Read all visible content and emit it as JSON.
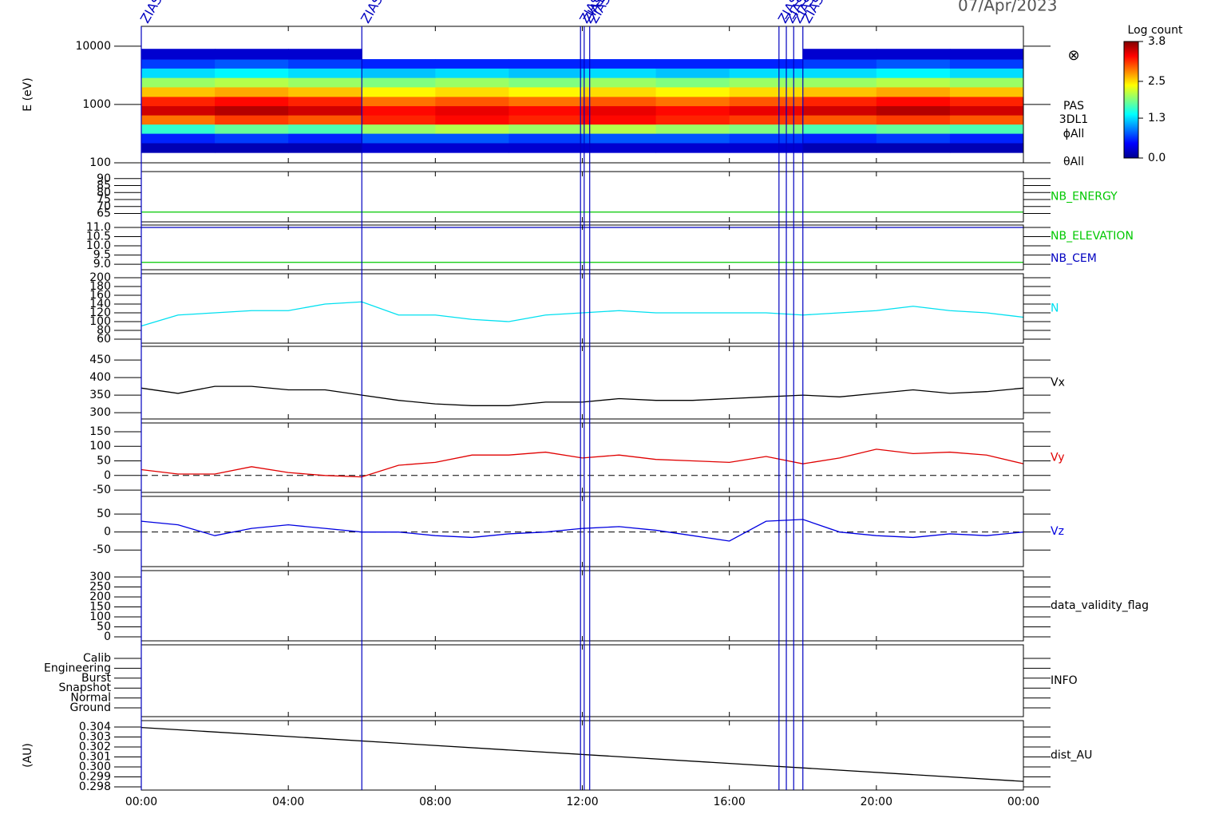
{
  "title": "07/Apr/2023",
  "event_markers": {
    "label": "ZIAS",
    "color": "#0000c0",
    "x": [
      0,
      6,
      11.95,
      12.05,
      12.2,
      17.35,
      17.55,
      17.75,
      18.0
    ]
  },
  "chart_data": [
    {
      "type": "heatmap",
      "ylabel": "E (eV)",
      "log_y": true,
      "xlim": [
        0,
        24
      ],
      "ylim": [
        100,
        21900
      ],
      "yticks": [
        100,
        1000,
        10000
      ],
      "right_labels": [
        "PAS",
        "3DL1",
        "ϕAll",
        "θAll"
      ],
      "symbol": "⊗",
      "x_edges": [
        0,
        2,
        4,
        6,
        8,
        10,
        12,
        14,
        16,
        18,
        20,
        22,
        24
      ],
      "y_edges": [
        150,
        220,
        320,
        460,
        660,
        950,
        1370,
        2000,
        2900,
        4200,
        6000,
        9000
      ],
      "z": [
        [
          0.2,
          0.2,
          0.2,
          0.3,
          0.3,
          0.3,
          0.3,
          0.3,
          0.3,
          0.2,
          0.2,
          0.2
        ],
        [
          0.6,
          0.7,
          0.6,
          0.8,
          0.8,
          0.7,
          0.8,
          0.8,
          0.7,
          0.6,
          0.7,
          0.6
        ],
        [
          1.6,
          1.8,
          1.7,
          2.0,
          2.1,
          2.0,
          2.1,
          2.0,
          1.9,
          1.7,
          1.8,
          1.7
        ],
        [
          2.9,
          3.1,
          3.0,
          3.2,
          3.3,
          3.2,
          3.3,
          3.2,
          3.1,
          3.0,
          3.1,
          3.0
        ],
        [
          3.5,
          3.6,
          3.5,
          3.3,
          3.4,
          3.3,
          3.4,
          3.3,
          3.4,
          3.5,
          3.6,
          3.5
        ],
        [
          3.2,
          3.3,
          3.2,
          2.9,
          3.0,
          2.9,
          3.0,
          2.9,
          3.0,
          3.2,
          3.3,
          3.2
        ],
        [
          2.6,
          2.7,
          2.6,
          2.4,
          2.5,
          2.4,
          2.5,
          2.4,
          2.5,
          2.6,
          2.7,
          2.6
        ],
        [
          2.0,
          2.1,
          2.0,
          1.9,
          2.0,
          1.9,
          2.0,
          1.9,
          2.0,
          2.0,
          2.1,
          2.0
        ],
        [
          1.3,
          1.4,
          1.3,
          1.2,
          1.3,
          1.2,
          1.3,
          1.2,
          1.3,
          1.3,
          1.4,
          1.3
        ],
        [
          0.7,
          0.8,
          0.7,
          0.6,
          0.6,
          0.6,
          0.6,
          0.6,
          0.6,
          0.7,
          0.8,
          0.7
        ],
        [
          0.3,
          0.3,
          0.3,
          null,
          null,
          null,
          null,
          null,
          null,
          0.3,
          0.3,
          0.3
        ]
      ],
      "colorbar": {
        "title": "Log count",
        "zlim": [
          0,
          3.8
        ],
        "ticks": [
          {
            "value": 0,
            "label": "0.0"
          },
          1.3,
          2.5,
          3.8
        ]
      }
    },
    {
      "type": "line",
      "xlim": [
        0,
        24
      ],
      "ylim": [
        59,
        95
      ],
      "yticks": [
        65,
        70,
        75,
        80,
        85,
        90
      ],
      "series": [
        {
          "name": "NB_ENERGY",
          "color": "#00c800",
          "x": [
            0,
            24
          ],
          "values": [
            66,
            66
          ]
        }
      ]
    },
    {
      "type": "line",
      "xlim": [
        0,
        24
      ],
      "ylim": [
        8.7,
        11.13
      ],
      "yticks": [
        {
          "value": 9,
          "label": "9.0"
        },
        9.5,
        {
          "value": 10,
          "label": "10.0"
        },
        10.5,
        {
          "value": 11,
          "label": "11.0"
        }
      ],
      "series": [
        {
          "name": "NB_ELEVATION",
          "color": "#00c800",
          "x": [
            0,
            24
          ],
          "values": [
            9.1,
            9.1
          ]
        },
        {
          "name": "NB_CEM",
          "color": "#0000c0",
          "x": [
            0,
            24
          ],
          "values": [
            11.0,
            11.0
          ]
        }
      ]
    },
    {
      "type": "line",
      "xlim": [
        0,
        24
      ],
      "ylim": [
        51,
        209
      ],
      "yticks": [
        60,
        80,
        100,
        120,
        140,
        160,
        180,
        200
      ],
      "series": [
        {
          "name": "N",
          "color": "#00e0f0",
          "x": [
            0,
            1,
            2,
            3,
            4,
            5,
            6,
            7,
            8,
            9,
            10,
            11,
            12,
            13,
            14,
            15,
            16,
            17,
            18,
            19,
            20,
            21,
            22,
            23,
            24
          ],
          "values": [
            90,
            115,
            120,
            125,
            125,
            140,
            145,
            115,
            115,
            105,
            100,
            115,
            120,
            125,
            120,
            120,
            120,
            120,
            115,
            120,
            125,
            135,
            125,
            120,
            110
          ]
        }
      ]
    },
    {
      "type": "line",
      "xlim": [
        0,
        24
      ],
      "ylim": [
        282,
        489
      ],
      "yticks": [
        300,
        350,
        400,
        450
      ],
      "series": [
        {
          "name": "Vx",
          "color": "#000000",
          "x": [
            0,
            1,
            2,
            3,
            4,
            5,
            6,
            7,
            8,
            9,
            10,
            11,
            12,
            13,
            14,
            15,
            16,
            17,
            18,
            19,
            20,
            21,
            22,
            23,
            24
          ],
          "values": [
            370,
            355,
            375,
            375,
            365,
            365,
            350,
            335,
            325,
            320,
            320,
            330,
            330,
            340,
            335,
            335,
            340,
            345,
            350,
            345,
            355,
            365,
            355,
            360,
            370
          ]
        }
      ]
    },
    {
      "type": "line",
      "xlim": [
        0,
        24
      ],
      "ylim": [
        -58,
        180
      ],
      "yticks": [
        -50,
        0,
        50,
        100,
        150
      ],
      "zero_line": true,
      "series": [
        {
          "name": "Vy",
          "color": "#e00000",
          "x": [
            0,
            1,
            2,
            3,
            4,
            5,
            6,
            7,
            8,
            9,
            10,
            11,
            12,
            13,
            14,
            15,
            16,
            17,
            18,
            19,
            20,
            21,
            22,
            23,
            24
          ],
          "values": [
            20,
            5,
            5,
            30,
            10,
            0,
            -5,
            35,
            45,
            70,
            70,
            80,
            60,
            70,
            55,
            50,
            45,
            65,
            40,
            60,
            90,
            75,
            80,
            70,
            40
          ]
        }
      ]
    },
    {
      "type": "line",
      "xlim": [
        0,
        24
      ],
      "ylim": [
        -96,
        99
      ],
      "yticks": [
        -50,
        0,
        50
      ],
      "zero_line": true,
      "series": [
        {
          "name": "Vz",
          "color": "#0000e0",
          "x": [
            0,
            1,
            2,
            3,
            4,
            5,
            6,
            7,
            8,
            9,
            10,
            11,
            12,
            13,
            14,
            15,
            16,
            17,
            18,
            19,
            20,
            21,
            22,
            23,
            24
          ],
          "values": [
            30,
            20,
            -10,
            10,
            20,
            10,
            0,
            0,
            -10,
            -15,
            -5,
            0,
            10,
            15,
            5,
            -10,
            -25,
            30,
            35,
            0,
            -10,
            -15,
            -5,
            -10,
            0
          ]
        }
      ]
    },
    {
      "type": "line",
      "xlim": [
        0,
        24
      ],
      "ylim": [
        -20,
        332
      ],
      "yticks": [
        0,
        50,
        100,
        150,
        200,
        250,
        300
      ],
      "label": "data_validity_flag",
      "series": []
    },
    {
      "type": "category",
      "xlim": [
        0,
        24
      ],
      "label": "INFO",
      "ycategories": [
        "Calib",
        "Engineering",
        "Burst",
        "Snapshot",
        "Normal",
        "Ground"
      ],
      "series": []
    },
    {
      "type": "line",
      "ylabel": "(AU)",
      "xlim": [
        0,
        24
      ],
      "ylim": [
        0.29768,
        0.30464
      ],
      "yticks": [
        {
          "value": 0.298,
          "label": "0.298"
        },
        {
          "value": 0.299,
          "label": "0.299"
        },
        {
          "value": 0.3,
          "label": "0.300"
        },
        {
          "value": 0.301,
          "label": "0.301"
        },
        {
          "value": 0.302,
          "label": "0.302"
        },
        {
          "value": 0.303,
          "label": "0.303"
        },
        {
          "value": 0.304,
          "label": "0.304"
        }
      ],
      "xticks": [
        {
          "value": 0,
          "label": "00:00"
        },
        {
          "value": 4,
          "label": "04:00"
        },
        {
          "value": 8,
          "label": "08:00"
        },
        {
          "value": 12,
          "label": "12:00"
        },
        {
          "value": 16,
          "label": "16:00"
        },
        {
          "value": 20,
          "label": "20:00"
        },
        {
          "value": 24,
          "label": "00:00"
        }
      ],
      "series": [
        {
          "name": "dist_AU",
          "color": "#000000",
          "x": [
            0,
            24
          ],
          "values": [
            0.30395,
            0.29855
          ]
        }
      ]
    }
  ]
}
